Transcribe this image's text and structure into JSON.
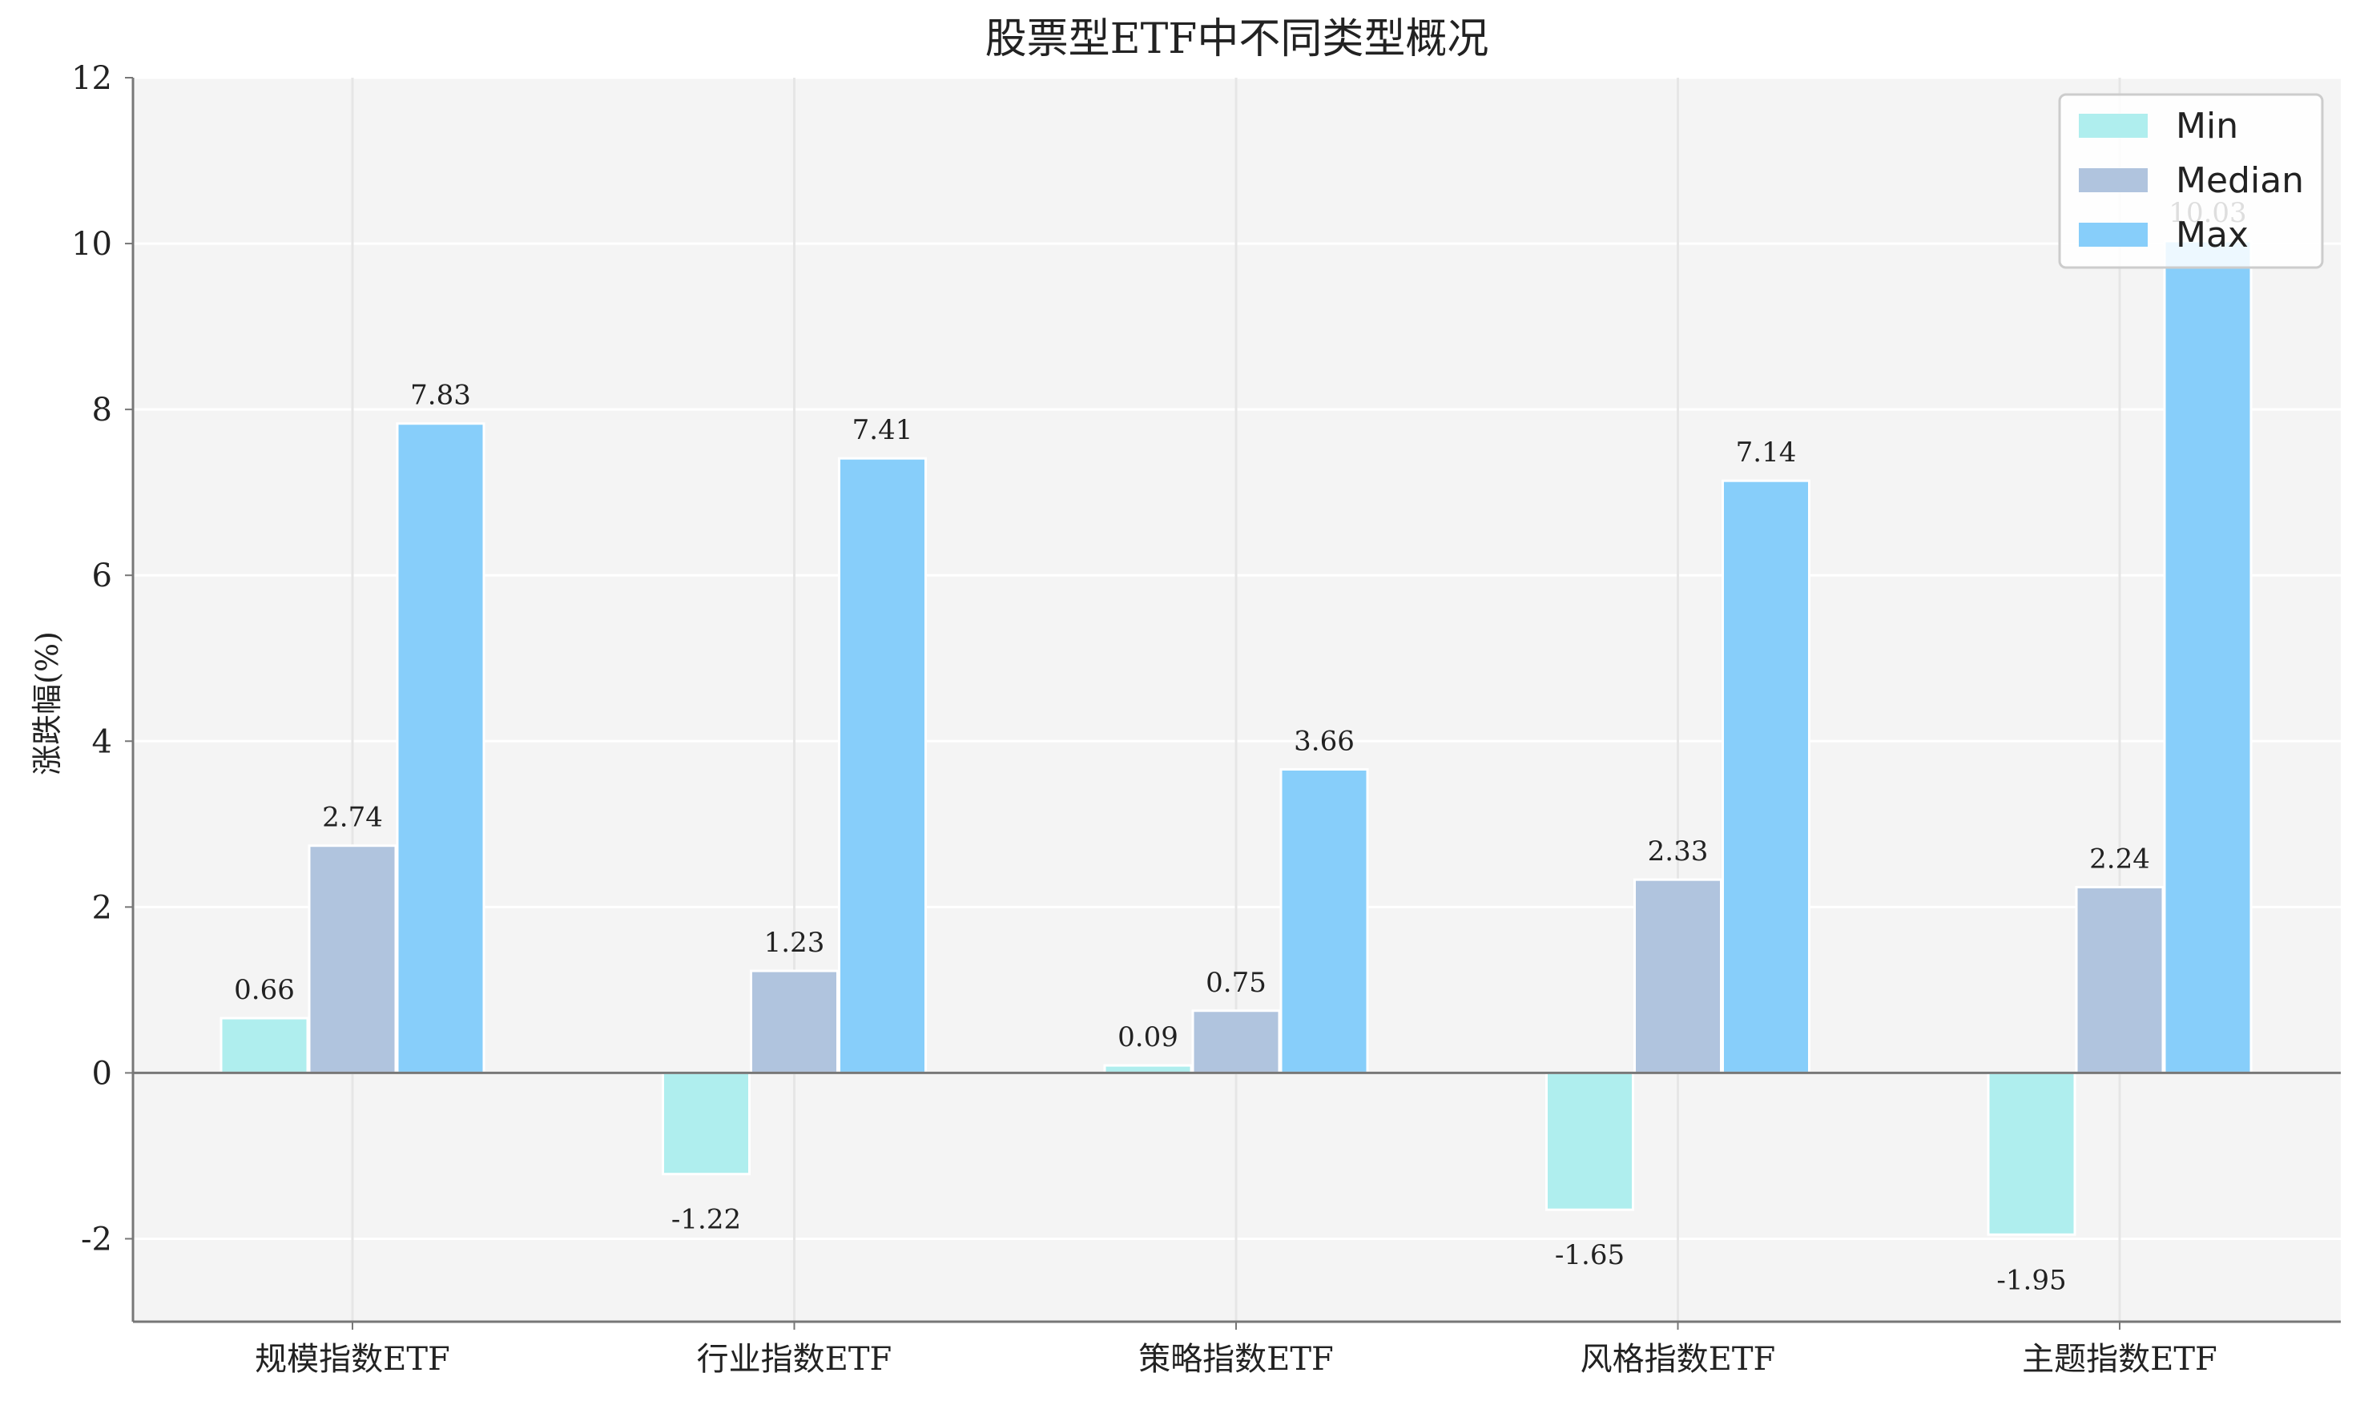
{
  "chart_data": {
    "type": "bar",
    "title": "股票型ETF中不同类型概况",
    "ylabel": "涨跌幅(%)",
    "xlabel": "",
    "categories": [
      "规模指数ETF",
      "行业指数ETF",
      "策略指数ETF",
      "风格指数ETF",
      "主题指数ETF"
    ],
    "series": [
      {
        "name": "Min",
        "values": [
          0.66,
          -1.22,
          0.09,
          -1.65,
          -1.95
        ],
        "labels": [
          "0.66",
          "-1.22",
          "0.09",
          "-1.65",
          "-1.95"
        ],
        "color": "#AFEEEE"
      },
      {
        "name": "Median",
        "values": [
          2.74,
          1.23,
          0.75,
          2.33,
          2.24
        ],
        "labels": [
          "2.74",
          "1.23",
          "0.75",
          "2.33",
          "2.24"
        ],
        "color": "#B0C4DE"
      },
      {
        "name": "Max",
        "values": [
          7.83,
          7.41,
          3.66,
          7.14,
          10.03
        ],
        "labels": [
          "7.83",
          "7.41",
          "3.66",
          "7.14",
          "10.03"
        ],
        "color": "#87CEFA"
      }
    ],
    "ylim": [
      -3,
      12
    ],
    "yticks": [
      -2,
      0,
      2,
      4,
      6,
      8,
      10,
      12
    ],
    "ytick_labels": [
      "-2",
      "0",
      "2",
      "4",
      "6",
      "8",
      "10",
      "12"
    ],
    "grid": true,
    "legend_position": "top-right",
    "colors": {
      "plot_background": "#F4F4F4",
      "grid": "#FFFFFF",
      "vertical_grid": "#E6E6E6",
      "axis": "#777777",
      "zero_line": "#777777"
    }
  }
}
